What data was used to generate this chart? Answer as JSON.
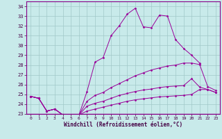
{
  "xlabel": "Windchill (Refroidissement éolien,°C)",
  "bg_color": "#c8eaea",
  "grid_color": "#a0c8c8",
  "line_color": "#990099",
  "ylim": [
    23,
    34.5
  ],
  "xlim": [
    -0.5,
    23.5
  ],
  "yticks": [
    23,
    24,
    25,
    26,
    27,
    28,
    29,
    30,
    31,
    32,
    33,
    34
  ],
  "xticks": [
    0,
    1,
    2,
    3,
    4,
    5,
    6,
    7,
    8,
    9,
    10,
    11,
    12,
    13,
    14,
    15,
    16,
    17,
    18,
    19,
    20,
    21,
    22,
    23
  ],
  "lines": [
    [
      24.8,
      24.6,
      23.3,
      23.5,
      22.9,
      22.85,
      22.9,
      25.3,
      28.3,
      28.75,
      31.0,
      32.0,
      33.2,
      33.8,
      31.9,
      31.8,
      33.1,
      33.0,
      30.6,
      29.7,
      29.0,
      28.2,
      null,
      null
    ],
    [
      24.8,
      24.6,
      23.3,
      23.5,
      22.9,
      22.85,
      22.9,
      24.3,
      24.9,
      25.2,
      25.7,
      26.1,
      26.5,
      26.9,
      27.2,
      27.5,
      27.7,
      27.9,
      28.0,
      28.2,
      28.2,
      28.05,
      25.8,
      25.4
    ],
    [
      24.8,
      24.6,
      23.3,
      23.5,
      22.9,
      22.85,
      22.9,
      23.8,
      24.1,
      24.3,
      24.6,
      24.9,
      25.1,
      25.3,
      25.45,
      25.55,
      25.7,
      25.8,
      25.85,
      25.9,
      26.6,
      25.75,
      25.5,
      25.2
    ],
    [
      24.8,
      24.6,
      23.3,
      23.5,
      22.9,
      22.85,
      22.9,
      23.3,
      23.5,
      23.7,
      23.9,
      24.1,
      24.3,
      24.45,
      24.55,
      24.65,
      24.75,
      24.8,
      24.85,
      24.9,
      25.0,
      25.5,
      25.5,
      25.2
    ]
  ]
}
